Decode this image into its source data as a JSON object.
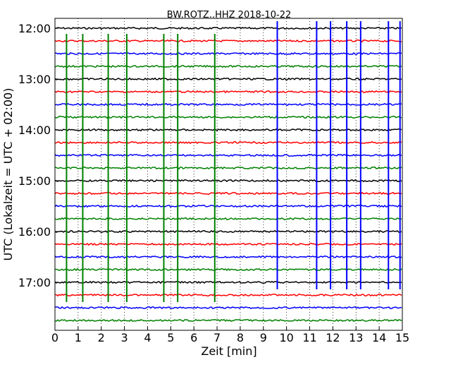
{
  "chart_data": {
    "type": "line",
    "title": "BW.ROTZ..HHZ 2018-10-22",
    "xlabel": "Zeit  [min]",
    "ylabel": "UTC (Lokalzeit = UTC + 02:00)",
    "xlim": [
      0,
      15
    ],
    "x_ticks": [
      "0",
      "1",
      "2",
      "3",
      "4",
      "5",
      "6",
      "7",
      "8",
      "9",
      "10",
      "11",
      "12",
      "13",
      "14",
      "15"
    ],
    "y_ticks": [
      "12:00",
      "13:00",
      "14:00",
      "15:00",
      "16:00",
      "17:00"
    ],
    "grid": "vertical dotted",
    "trace_interval_minutes": 15,
    "trace_colors": [
      "#000000",
      "#ff0000",
      "#0000ff",
      "#008000"
    ],
    "traces": [
      "12:00",
      "12:15",
      "12:30",
      "12:45",
      "13:00",
      "13:15",
      "13:30",
      "13:45",
      "14:00",
      "14:15",
      "14:30",
      "14:45",
      "15:00",
      "15:15",
      "15:30",
      "15:45",
      "16:00",
      "16:15",
      "16:30",
      "16:45",
      "17:00",
      "17:15",
      "17:30",
      "17:45"
    ],
    "events": [
      {
        "x": 0.5,
        "trace": "14:45",
        "color": "#008000"
      },
      {
        "x": 1.2,
        "trace": "14:45",
        "color": "#008000"
      },
      {
        "x": 2.3,
        "trace": "14:45",
        "color": "#008000"
      },
      {
        "x": 3.1,
        "trace": "14:45",
        "color": "#008000"
      },
      {
        "x": 4.7,
        "trace": "14:45",
        "color": "#008000"
      },
      {
        "x": 5.3,
        "trace": "14:45",
        "color": "#008000"
      },
      {
        "x": 6.9,
        "trace": "14:45",
        "color": "#008000"
      },
      {
        "x": 9.6,
        "trace": "14:30",
        "color": "#0000ff"
      },
      {
        "x": 11.3,
        "trace": "14:30",
        "color": "#0000ff"
      },
      {
        "x": 11.9,
        "trace": "14:30",
        "color": "#0000ff"
      },
      {
        "x": 12.6,
        "trace": "14:30",
        "color": "#0000ff"
      },
      {
        "x": 13.2,
        "trace": "14:30",
        "color": "#0000ff"
      },
      {
        "x": 14.4,
        "trace": "14:30",
        "color": "#0000ff"
      },
      {
        "x": 14.9,
        "trace": "14:30",
        "color": "#0000ff"
      }
    ]
  }
}
